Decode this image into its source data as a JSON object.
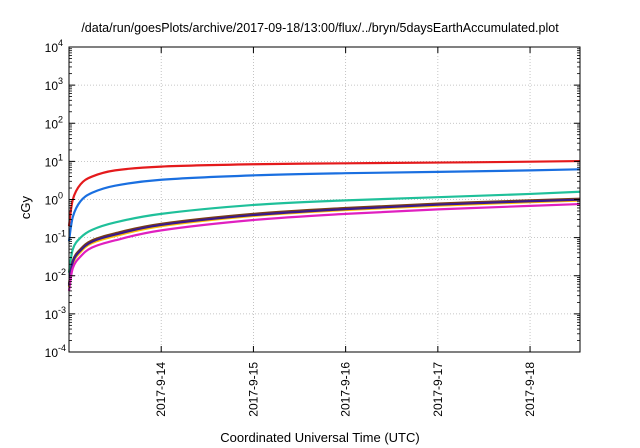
{
  "chart_data": {
    "type": "line",
    "title": "/data/run/goesPlots/archive/2017-09-18/13:00/flux/../bryn/5daysEarthAccumulated.plot",
    "xlabel": "Coordinated Universal Time (UTC)",
    "ylabel": "cGy",
    "yscale": "log",
    "ylim_exponents": [
      -4,
      4
    ],
    "y_tick_labels": [
      {
        "base": "10",
        "exp": "-4"
      },
      {
        "base": "10",
        "exp": "-3"
      },
      {
        "base": "10",
        "exp": "-2"
      },
      {
        "base": "10",
        "exp": "-1"
      },
      {
        "base": "10",
        "exp": "0"
      },
      {
        "base": "10",
        "exp": "1"
      },
      {
        "base": "10",
        "exp": "2"
      },
      {
        "base": "10",
        "exp": "3"
      },
      {
        "base": "10",
        "exp": "4"
      }
    ],
    "xlim": [
      "2017-09-13 00:00",
      "2017-09-18 13:00"
    ],
    "x_ticks": [
      "2017-9-14",
      "2017-9-15",
      "2017-9-16",
      "2017-9-17",
      "2017-9-18"
    ],
    "grid": true,
    "series": [
      {
        "color": "#e41a1c",
        "x": [
          "2017-09-13 00:00",
          "2017-09-13 01:00",
          "2017-09-13 03:00",
          "2017-09-13 06:00",
          "2017-09-13 12:00",
          "2017-09-14 00:00",
          "2017-09-15 00:00",
          "2017-09-16 00:00",
          "2017-09-17 00:00",
          "2017-09-18 00:00",
          "2017-09-18 13:00"
        ],
        "y": [
          0.2,
          1.0,
          2.5,
          4.0,
          5.8,
          7.3,
          8.4,
          8.9,
          9.3,
          9.8,
          10.2
        ]
      },
      {
        "color": "#1a6fe0",
        "x": [
          "2017-09-13 00:00",
          "2017-09-13 01:00",
          "2017-09-13 03:00",
          "2017-09-13 06:00",
          "2017-09-13 12:00",
          "2017-09-14 00:00",
          "2017-09-15 00:00",
          "2017-09-16 00:00",
          "2017-09-17 00:00",
          "2017-09-18 00:00",
          "2017-09-18 13:00"
        ],
        "y": [
          0.08,
          0.35,
          0.9,
          1.5,
          2.3,
          3.3,
          4.3,
          4.9,
          5.3,
          5.8,
          6.2
        ]
      },
      {
        "color": "#1fc09a",
        "x": [
          "2017-09-13 00:00",
          "2017-09-13 01:00",
          "2017-09-13 03:00",
          "2017-09-13 06:00",
          "2017-09-13 12:00",
          "2017-09-14 00:00",
          "2017-09-15 00:00",
          "2017-09-16 00:00",
          "2017-09-17 00:00",
          "2017-09-18 00:00",
          "2017-09-18 13:00"
        ],
        "y": [
          0.012,
          0.05,
          0.1,
          0.16,
          0.25,
          0.42,
          0.72,
          0.95,
          1.15,
          1.4,
          1.6
        ]
      },
      {
        "color": "#7b3f12",
        "x": [
          "2017-09-13 00:00",
          "2017-09-13 01:00",
          "2017-09-13 03:00",
          "2017-09-13 06:00",
          "2017-09-13 12:00",
          "2017-09-14 00:00",
          "2017-09-15 00:00",
          "2017-09-16 00:00",
          "2017-09-17 00:00",
          "2017-09-18 00:00",
          "2017-09-18 13:00"
        ],
        "y": [
          0.006,
          0.025,
          0.05,
          0.085,
          0.13,
          0.23,
          0.42,
          0.6,
          0.78,
          0.95,
          1.05
        ]
      },
      {
        "color": "#ffc000",
        "x": [
          "2017-09-13 00:00",
          "2017-09-13 01:00",
          "2017-09-13 03:00",
          "2017-09-13 06:00",
          "2017-09-13 12:00",
          "2017-09-14 00:00",
          "2017-09-15 00:00",
          "2017-09-16 00:00",
          "2017-09-17 00:00",
          "2017-09-18 00:00",
          "2017-09-18 13:00"
        ],
        "y": [
          0.005,
          0.021,
          0.042,
          0.072,
          0.11,
          0.2,
          0.37,
          0.53,
          0.69,
          0.85,
          0.94
        ]
      },
      {
        "color": "#3b1a8c",
        "x": [
          "2017-09-13 00:00",
          "2017-09-13 01:00",
          "2017-09-13 03:00",
          "2017-09-13 06:00",
          "2017-09-13 12:00",
          "2017-09-14 00:00",
          "2017-09-15 00:00",
          "2017-09-16 00:00",
          "2017-09-17 00:00",
          "2017-09-18 00:00",
          "2017-09-18 13:00"
        ],
        "y": [
          0.0055,
          0.023,
          0.046,
          0.078,
          0.12,
          0.215,
          0.39,
          0.56,
          0.73,
          0.9,
          0.99
        ]
      },
      {
        "color": "#e020c0",
        "x": [
          "2017-09-13 00:00",
          "2017-09-13 01:00",
          "2017-09-13 03:00",
          "2017-09-13 06:00",
          "2017-09-13 12:00",
          "2017-09-14 00:00",
          "2017-09-15 00:00",
          "2017-09-16 00:00",
          "2017-09-17 00:00",
          "2017-09-18 00:00",
          "2017-09-18 13:00"
        ],
        "y": [
          0.004,
          0.016,
          0.032,
          0.055,
          0.085,
          0.155,
          0.29,
          0.42,
          0.55,
          0.68,
          0.76
        ]
      }
    ]
  }
}
